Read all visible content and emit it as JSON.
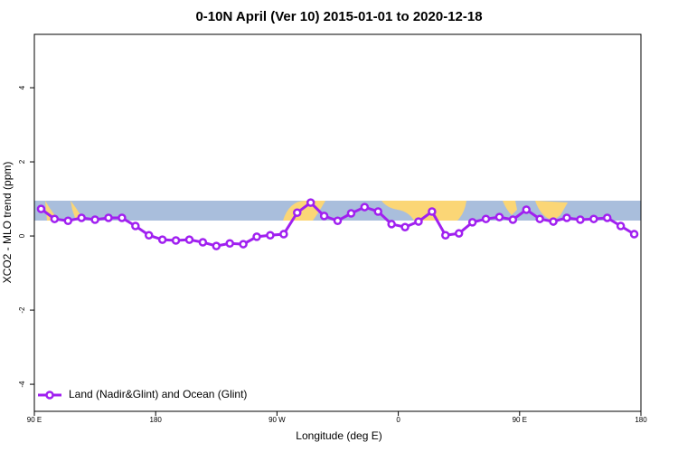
{
  "chart_data": {
    "type": "line",
    "title": "0-10N April (Ver 10)   2015-01-01 to 2020-12-18",
    "xlabel": "Longitude (deg E)",
    "ylabel": "XCO2 - MLO trend (ppm)",
    "x": [
      95,
      105,
      115,
      125,
      135,
      145,
      155,
      165,
      175,
      185,
      195,
      205,
      215,
      225,
      235,
      245,
      255,
      265,
      275,
      285,
      295,
      305,
      315,
      325,
      335,
      345,
      355,
      365,
      375,
      385,
      395,
      405,
      415,
      425,
      435,
      445,
      455,
      465,
      475,
      485,
      495,
      505,
      515,
      525,
      535
    ],
    "series": [
      {
        "name": "Land (Nadir&Glint) and Ocean (Glint)",
        "color": "#a020f0",
        "values": [
          0.73,
          0.46,
          0.41,
          0.49,
          0.44,
          0.49,
          0.49,
          0.27,
          0.02,
          -0.1,
          -0.12,
          -0.1,
          -0.17,
          -0.27,
          -0.2,
          -0.22,
          -0.02,
          0.02,
          0.05,
          0.63,
          0.9,
          0.54,
          0.41,
          0.61,
          0.78,
          0.66,
          0.32,
          0.24,
          0.39,
          0.66,
          0.02,
          0.07,
          0.37,
          0.46,
          0.51,
          0.44,
          0.71,
          0.46,
          0.39,
          0.49,
          0.44,
          0.46,
          0.49,
          0.27,
          0.05
        ]
      }
    ],
    "xlim": [
      90,
      540
    ],
    "xticks": [
      {
        "value": 90,
        "label": "90 E"
      },
      {
        "value": 180,
        "label": "180"
      },
      {
        "value": 270,
        "label": "90 W"
      },
      {
        "value": 360,
        "label": "0"
      },
      {
        "value": 450,
        "label": "90 E"
      },
      {
        "value": 540,
        "label": "180"
      }
    ],
    "ylim": [
      -4.73,
      5.44
    ],
    "yticks": [
      -4,
      -2,
      0,
      2,
      4
    ],
    "legend": "bottom-left"
  }
}
